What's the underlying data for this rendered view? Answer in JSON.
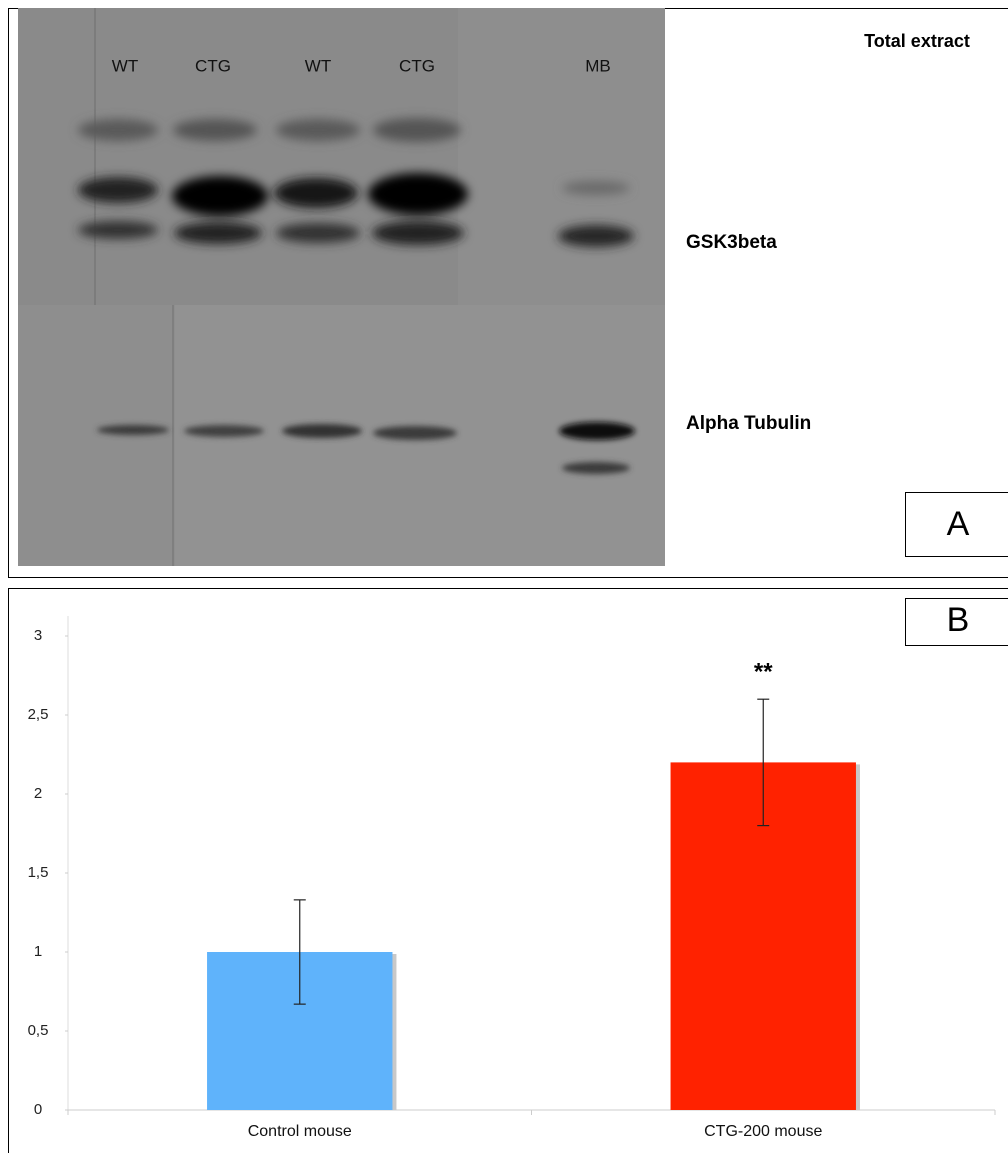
{
  "panel_a": {
    "title": "Total extract",
    "lanes": [
      "WT",
      "CTG",
      "WT",
      "CTG",
      "MB"
    ],
    "bands": [
      "GSK3beta",
      "Alpha Tubulin"
    ],
    "label": "A"
  },
  "chart_data": {
    "type": "bar",
    "panel_label": "B",
    "categories": [
      "Control mouse",
      "CTG-200 mouse"
    ],
    "values": [
      1,
      2.2
    ],
    "errors": [
      0.33,
      0.4
    ],
    "colors": [
      "#5fb3fb",
      "#ff2200"
    ],
    "annotations": [
      {
        "category": 1,
        "text": "**"
      }
    ],
    "ylim": [
      0,
      3
    ],
    "yticks": [
      0,
      {
        "value": 0.5,
        "label": "0,5"
      },
      1,
      {
        "value": 1.5,
        "label": "1,5"
      },
      2,
      {
        "value": 2.5,
        "label": "2,5"
      },
      3
    ],
    "grid": false
  }
}
